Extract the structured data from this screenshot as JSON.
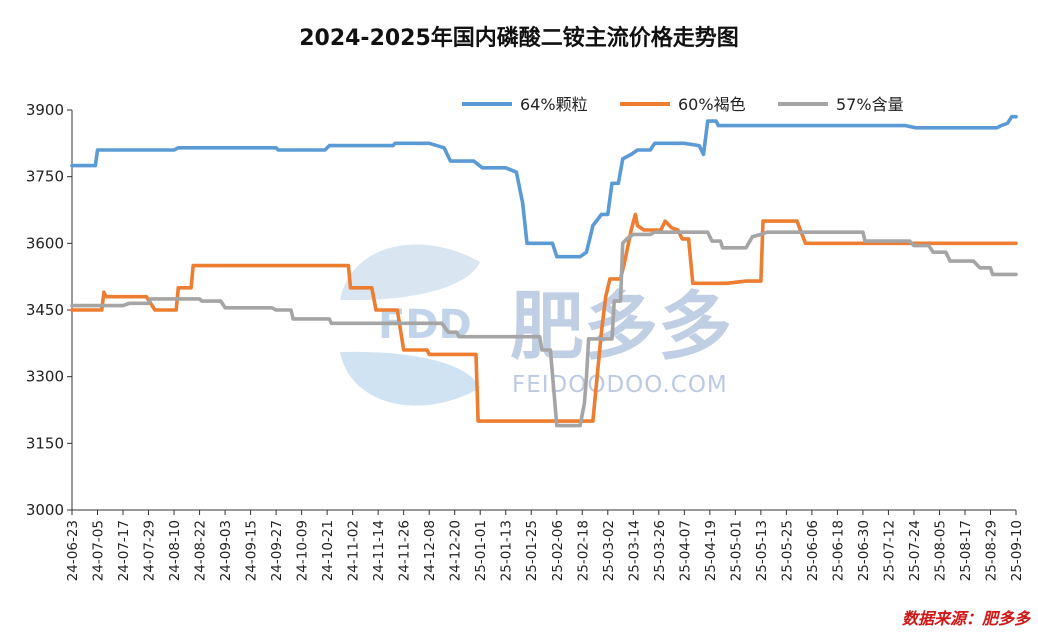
{
  "chart_data": {
    "type": "line",
    "title": "2024-2025年国内磷酸二铵主流价格走势图",
    "source": "数据来源：肥多多",
    "watermark": {
      "brand_cn": "肥多多",
      "brand_en": "FEIDOODOO.COM",
      "logo_text": "FDD"
    },
    "ylim": [
      3000,
      3900
    ],
    "yticks": [
      3000,
      3150,
      3300,
      3450,
      3600,
      3750,
      3900
    ],
    "x_range": [
      "2024-06-23",
      "2025-09-10"
    ],
    "xticks": [
      "24-06-23",
      "24-07-05",
      "24-07-17",
      "24-07-29",
      "24-08-10",
      "24-08-22",
      "24-09-03",
      "24-09-15",
      "24-09-27",
      "24-10-09",
      "24-10-21",
      "24-11-02",
      "24-11-14",
      "24-11-26",
      "24-12-08",
      "24-12-20",
      "25-01-01",
      "25-01-13",
      "25-01-25",
      "25-02-06",
      "25-02-18",
      "25-03-02",
      "25-03-14",
      "25-03-26",
      "25-04-07",
      "25-04-19",
      "25-05-01",
      "25-05-13",
      "25-05-25",
      "25-06-06",
      "25-06-18",
      "25-06-30",
      "25-07-12",
      "25-07-24",
      "25-08-05",
      "25-08-17",
      "25-08-29",
      "25-09-10"
    ],
    "legend_position": "top-right",
    "grid": false,
    "series": [
      {
        "name": "64%颗粒",
        "color": "#5b9bd5",
        "points": [
          [
            "2024-06-23",
            3775
          ],
          [
            "2024-07-04",
            3775
          ],
          [
            "2024-07-05",
            3810
          ],
          [
            "2024-08-10",
            3810
          ],
          [
            "2024-08-12",
            3815
          ],
          [
            "2024-09-27",
            3815
          ],
          [
            "2024-09-28",
            3810
          ],
          [
            "2024-10-20",
            3810
          ],
          [
            "2024-10-22",
            3820
          ],
          [
            "2024-11-21",
            3820
          ],
          [
            "2024-11-22",
            3825
          ],
          [
            "2024-12-08",
            3825
          ],
          [
            "2024-12-15",
            3815
          ],
          [
            "2024-12-18",
            3785
          ],
          [
            "2024-12-29",
            3785
          ],
          [
            "2025-01-02",
            3770
          ],
          [
            "2025-01-13",
            3770
          ],
          [
            "2025-01-18",
            3760
          ],
          [
            "2025-01-21",
            3690
          ],
          [
            "2025-01-23",
            3600
          ],
          [
            "2025-02-04",
            3600
          ],
          [
            "2025-02-06",
            3570
          ],
          [
            "2025-02-17",
            3570
          ],
          [
            "2025-02-20",
            3580
          ],
          [
            "2025-02-23",
            3640
          ],
          [
            "2025-02-27",
            3665
          ],
          [
            "2025-03-02",
            3665
          ],
          [
            "2025-03-04",
            3735
          ],
          [
            "2025-03-07",
            3735
          ],
          [
            "2025-03-09",
            3790
          ],
          [
            "2025-03-13",
            3800
          ],
          [
            "2025-03-16",
            3810
          ],
          [
            "2025-03-22",
            3810
          ],
          [
            "2025-03-24",
            3825
          ],
          [
            "2025-04-07",
            3825
          ],
          [
            "2025-04-14",
            3820
          ],
          [
            "2025-04-16",
            3800
          ],
          [
            "2025-04-18",
            3875
          ],
          [
            "2025-04-22",
            3875
          ],
          [
            "2025-04-23",
            3865
          ],
          [
            "2025-07-20",
            3865
          ],
          [
            "2025-07-25",
            3860
          ],
          [
            "2025-09-01",
            3860
          ],
          [
            "2025-09-03",
            3865
          ],
          [
            "2025-09-06",
            3870
          ],
          [
            "2025-09-08",
            3885
          ],
          [
            "2025-09-10",
            3885
          ]
        ]
      },
      {
        "name": "60%褐色",
        "color": "#ed7d31",
        "points": [
          [
            "2024-06-23",
            3450
          ],
          [
            "2024-07-07",
            3450
          ],
          [
            "2024-07-08",
            3490
          ],
          [
            "2024-07-09",
            3480
          ],
          [
            "2024-07-28",
            3480
          ],
          [
            "2024-08-01",
            3450
          ],
          [
            "2024-08-11",
            3450
          ],
          [
            "2024-08-12",
            3500
          ],
          [
            "2024-08-18",
            3500
          ],
          [
            "2024-08-19",
            3550
          ],
          [
            "2024-10-31",
            3550
          ],
          [
            "2024-11-01",
            3500
          ],
          [
            "2024-11-11",
            3500
          ],
          [
            "2024-11-13",
            3450
          ],
          [
            "2024-11-23",
            3450
          ],
          [
            "2024-11-26",
            3360
          ],
          [
            "2024-12-07",
            3360
          ],
          [
            "2024-12-08",
            3350
          ],
          [
            "2024-12-30",
            3350
          ],
          [
            "2024-12-31",
            3200
          ],
          [
            "2025-02-23",
            3200
          ],
          [
            "2025-02-24",
            3250
          ],
          [
            "2025-02-27",
            3400
          ],
          [
            "2025-03-01",
            3480
          ],
          [
            "2025-03-03",
            3520
          ],
          [
            "2025-03-08",
            3520
          ],
          [
            "2025-03-10",
            3560
          ],
          [
            "2025-03-13",
            3630
          ],
          [
            "2025-03-15",
            3665
          ],
          [
            "2025-03-16",
            3640
          ],
          [
            "2025-03-19",
            3630
          ],
          [
            "2025-03-27",
            3630
          ],
          [
            "2025-03-29",
            3650
          ],
          [
            "2025-04-01",
            3635
          ],
          [
            "2025-04-04",
            3630
          ],
          [
            "2025-04-06",
            3610
          ],
          [
            "2025-04-09",
            3610
          ],
          [
            "2025-04-11",
            3510
          ],
          [
            "2025-04-27",
            3510
          ],
          [
            "2025-05-06",
            3515
          ],
          [
            "2025-05-13",
            3515
          ],
          [
            "2025-05-14",
            3650
          ],
          [
            "2025-05-30",
            3650
          ],
          [
            "2025-06-03",
            3600
          ],
          [
            "2025-09-10",
            3600
          ]
        ]
      },
      {
        "name": "57%含量",
        "color": "#a5a5a5",
        "points": [
          [
            "2024-06-23",
            3460
          ],
          [
            "2024-07-17",
            3460
          ],
          [
            "2024-07-20",
            3465
          ],
          [
            "2024-07-29",
            3465
          ],
          [
            "2024-07-30",
            3475
          ],
          [
            "2024-08-22",
            3475
          ],
          [
            "2024-08-23",
            3470
          ],
          [
            "2024-09-01",
            3470
          ],
          [
            "2024-09-03",
            3455
          ],
          [
            "2024-09-25",
            3455
          ],
          [
            "2024-09-27",
            3450
          ],
          [
            "2024-10-04",
            3450
          ],
          [
            "2024-10-05",
            3430
          ],
          [
            "2024-10-22",
            3430
          ],
          [
            "2024-10-23",
            3420
          ],
          [
            "2024-12-14",
            3420
          ],
          [
            "2024-12-17",
            3400
          ],
          [
            "2024-12-21",
            3400
          ],
          [
            "2024-12-22",
            3390
          ],
          [
            "2025-01-29",
            3390
          ],
          [
            "2025-01-30",
            3360
          ],
          [
            "2025-02-03",
            3360
          ],
          [
            "2025-02-06",
            3190
          ],
          [
            "2025-02-17",
            3190
          ],
          [
            "2025-02-19",
            3240
          ],
          [
            "2025-02-20",
            3300
          ],
          [
            "2025-02-21",
            3385
          ],
          [
            "2025-03-04",
            3385
          ],
          [
            "2025-03-05",
            3470
          ],
          [
            "2025-03-08",
            3470
          ],
          [
            "2025-03-09",
            3600
          ],
          [
            "2025-03-11",
            3610
          ],
          [
            "2025-03-14",
            3620
          ],
          [
            "2025-03-22",
            3620
          ],
          [
            "2025-03-24",
            3625
          ],
          [
            "2025-04-18",
            3625
          ],
          [
            "2025-04-20",
            3605
          ],
          [
            "2025-04-24",
            3605
          ],
          [
            "2025-04-25",
            3590
          ],
          [
            "2025-05-06",
            3590
          ],
          [
            "2025-05-09",
            3615
          ],
          [
            "2025-05-13",
            3620
          ],
          [
            "2025-05-16",
            3625
          ],
          [
            "2025-06-30",
            3625
          ],
          [
            "2025-07-01",
            3605
          ],
          [
            "2025-07-22",
            3605
          ],
          [
            "2025-07-24",
            3595
          ],
          [
            "2025-07-31",
            3595
          ],
          [
            "2025-08-02",
            3580
          ],
          [
            "2025-08-08",
            3580
          ],
          [
            "2025-08-10",
            3560
          ],
          [
            "2025-08-21",
            3560
          ],
          [
            "2025-08-24",
            3545
          ],
          [
            "2025-08-29",
            3545
          ],
          [
            "2025-08-30",
            3530
          ],
          [
            "2025-09-10",
            3530
          ]
        ]
      }
    ]
  }
}
